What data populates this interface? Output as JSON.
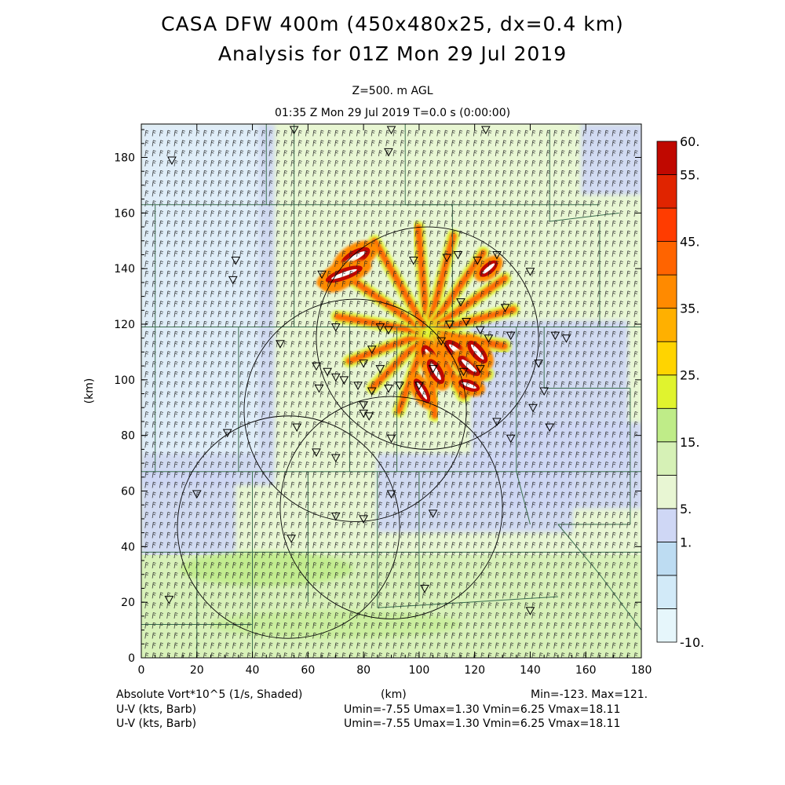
{
  "title_line1": "CASA DFW 400m (450x480x25, dx=0.4 km)",
  "title_line2": "Analysis for 01Z Mon 29 Jul 2019",
  "level_label": "Z=500. m AGL",
  "time_label": "01:35 Z Mon 29 Jul 2019    T=0.0 s (0:00:00)",
  "footer": {
    "field_label": "Absolute Vort*10^5 (1/s, Shaded)",
    "barb_label_1": "U-V (kts, Barb)",
    "barb_label_2": "U-V (kts, Barb)",
    "xunits": "(km)",
    "minmax": "Min=-123. Max=121.",
    "uv_stats_1": "Umin=-7.55 Umax=1.30 Vmin=6.25 Vmax=18.11",
    "uv_stats_2": "Umin=-7.55 Umax=1.30 Vmin=6.25 Vmax=18.11"
  },
  "chart_data": {
    "type": "heatmap",
    "ylabel": "(km)",
    "xlabel": "(km)",
    "xlim": [
      0,
      180
    ],
    "ylim": [
      0,
      192
    ],
    "xticks": [
      0,
      20,
      40,
      60,
      80,
      100,
      120,
      140,
      160,
      180
    ],
    "yticks": [
      0,
      20,
      40,
      60,
      80,
      100,
      120,
      140,
      160,
      180
    ],
    "colorbar": {
      "levels": [
        -10,
        -5,
        0,
        1,
        5,
        10,
        15,
        20,
        25,
        30,
        35,
        40,
        45,
        50,
        55,
        60
      ],
      "colors": [
        "#e6f6fb",
        "#d2eaf8",
        "#bddcf2",
        "#cfd7f5",
        "#e8f6d3",
        "#d6f1b6",
        "#bfec88",
        "#e0f32e",
        "#ffd400",
        "#ffb000",
        "#ff8a00",
        "#ff6400",
        "#ff3c00",
        "#e02400",
        "#c00800"
      ],
      "tick_labels": [
        {
          "value": -10,
          "text": "-10."
        },
        {
          "value": 1,
          "text": "1."
        },
        {
          "value": 5,
          "text": "5."
        },
        {
          "value": 15,
          "text": "15."
        },
        {
          "value": 25,
          "text": "25."
        },
        {
          "value": 35,
          "text": "35."
        },
        {
          "value": 45,
          "text": "45."
        },
        {
          "value": 55,
          "text": "55."
        },
        {
          "value": 60,
          "text": "60."
        }
      ]
    },
    "radar_rings": [
      {
        "cx": 103,
        "cy": 115,
        "r": 40
      },
      {
        "cx": 77,
        "cy": 89,
        "r": 40
      },
      {
        "cx": 53,
        "cy": 47,
        "r": 40
      },
      {
        "cx": 90,
        "cy": 54,
        "r": 40
      }
    ],
    "vortex_center": {
      "x": 103,
      "y": 117
    },
    "station_markers": [
      [
        11,
        179
      ],
      [
        55,
        190
      ],
      [
        90,
        190
      ],
      [
        89,
        182
      ],
      [
        124,
        190
      ],
      [
        34,
        143
      ],
      [
        33,
        136
      ],
      [
        65,
        138
      ],
      [
        98,
        143
      ],
      [
        110,
        144
      ],
      [
        114,
        145
      ],
      [
        121,
        143
      ],
      [
        128,
        145
      ],
      [
        131,
        126
      ],
      [
        133,
        116
      ],
      [
        125,
        115
      ],
      [
        122,
        118
      ],
      [
        117,
        121
      ],
      [
        115,
        128
      ],
      [
        111,
        120
      ],
      [
        108,
        114
      ],
      [
        86,
        119
      ],
      [
        89,
        118
      ],
      [
        70,
        119
      ],
      [
        50,
        113
      ],
      [
        63,
        105
      ],
      [
        67,
        103
      ],
      [
        70,
        101
      ],
      [
        73,
        100
      ],
      [
        78,
        98
      ],
      [
        80,
        91
      ],
      [
        80,
        88
      ],
      [
        82,
        87
      ],
      [
        83,
        96
      ],
      [
        89,
        97
      ],
      [
        86,
        104
      ],
      [
        80,
        106
      ],
      [
        83,
        111
      ],
      [
        64,
        97
      ],
      [
        93,
        98
      ],
      [
        100,
        98
      ],
      [
        105,
        104
      ],
      [
        116,
        103
      ],
      [
        122,
        104
      ],
      [
        143,
        106
      ],
      [
        145,
        96
      ],
      [
        147,
        83
      ],
      [
        128,
        85
      ],
      [
        133,
        79
      ],
      [
        141,
        90
      ],
      [
        149,
        116
      ],
      [
        153,
        115
      ],
      [
        31,
        81
      ],
      [
        56,
        83
      ],
      [
        63,
        74
      ],
      [
        70,
        72
      ],
      [
        90,
        79
      ],
      [
        90,
        59
      ],
      [
        70,
        51
      ],
      [
        80,
        50
      ],
      [
        105,
        52
      ],
      [
        20,
        59
      ],
      [
        10,
        21
      ],
      [
        54,
        43
      ],
      [
        102,
        25
      ],
      [
        140,
        17
      ],
      [
        140,
        139
      ]
    ],
    "hotspots": [
      {
        "x": 77,
        "y": 144,
        "rx": 6,
        "ry": 2,
        "angle": 30,
        "value": 60
      },
      {
        "x": 71,
        "y": 137,
        "rx": 5,
        "ry": 2,
        "angle": 30,
        "value": 60
      },
      {
        "x": 73,
        "y": 138,
        "rx": 7,
        "ry": 1.6,
        "angle": 20,
        "value": 60
      },
      {
        "x": 104,
        "y": 108,
        "rx": 5,
        "ry": 1.8,
        "angle": -60,
        "value": 60
      },
      {
        "x": 106,
        "y": 103,
        "rx": 5,
        "ry": 1.8,
        "angle": -60,
        "value": 60
      },
      {
        "x": 114,
        "y": 110,
        "rx": 6,
        "ry": 2,
        "angle": -40,
        "value": 60
      },
      {
        "x": 118,
        "y": 105,
        "rx": 5,
        "ry": 1.8,
        "angle": -40,
        "value": 60
      },
      {
        "x": 121,
        "y": 110,
        "rx": 5,
        "ry": 1.8,
        "angle": -50,
        "value": 60
      },
      {
        "x": 101,
        "y": 96,
        "rx": 5,
        "ry": 1.5,
        "angle": -60,
        "value": 55
      },
      {
        "x": 118,
        "y": 98,
        "rx": 4,
        "ry": 1.5,
        "angle": -20,
        "value": 55
      },
      {
        "x": 125,
        "y": 140,
        "rx": 4,
        "ry": 1.5,
        "angle": 40,
        "value": 55
      }
    ],
    "spiral_bands": [
      {
        "angle": 95,
        "r0": 3,
        "r1": 38,
        "width": 2.6
      },
      {
        "angle": 75,
        "r0": 3,
        "r1": 36,
        "width": 2.6
      },
      {
        "angle": 55,
        "r0": 3,
        "r1": 35,
        "width": 2.6
      },
      {
        "angle": 35,
        "r0": 3,
        "r1": 34,
        "width": 2.6
      },
      {
        "angle": 15,
        "r0": 3,
        "r1": 32,
        "width": 2.6
      },
      {
        "angle": -10,
        "r0": 3,
        "r1": 28,
        "width": 3.0
      },
      {
        "angle": -35,
        "r0": 3,
        "r1": 26,
        "width": 3.0
      },
      {
        "angle": -60,
        "r0": 3,
        "r1": 26,
        "width": 3.0
      },
      {
        "angle": -85,
        "r0": 3,
        "r1": 30,
        "width": 2.6
      },
      {
        "angle": -110,
        "r0": 3,
        "r1": 30,
        "width": 2.6
      },
      {
        "angle": -135,
        "r0": 3,
        "r1": 28,
        "width": 2.6
      },
      {
        "angle": -160,
        "r0": 3,
        "r1": 30,
        "width": 2.6
      },
      {
        "angle": 170,
        "r0": 3,
        "r1": 33,
        "width": 2.6
      },
      {
        "angle": 145,
        "r0": 3,
        "r1": 36,
        "width": 2.6
      },
      {
        "angle": 120,
        "r0": 3,
        "r1": 38,
        "width": 2.6
      }
    ]
  }
}
